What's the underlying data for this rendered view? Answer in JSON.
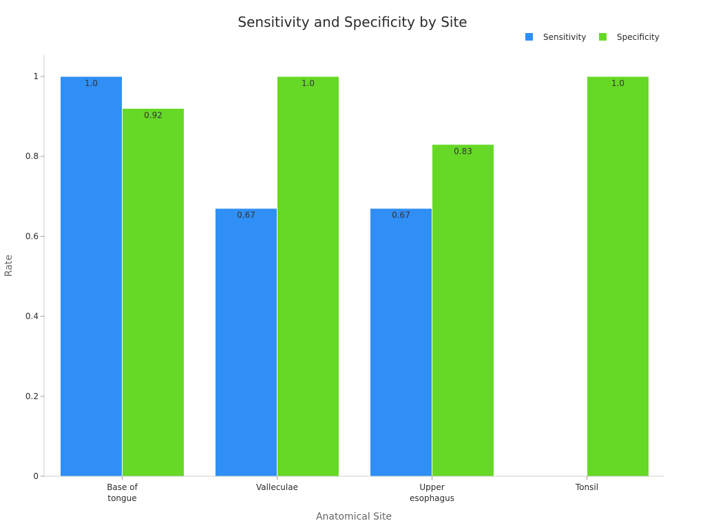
{
  "chart_data": {
    "type": "bar",
    "title": "Sensitivity and Specificity by Site",
    "xlabel": "Anatomical Site",
    "ylabel": "Rate",
    "ylim": [
      0,
      1.05
    ],
    "yticks": [
      0,
      0.2,
      0.4,
      0.6,
      0.8,
      1
    ],
    "ytick_labels": [
      "0",
      "0.2",
      "0.4",
      "0.6",
      "0.8",
      "1"
    ],
    "legend_position": "top-right",
    "grid": false,
    "categories": [
      [
        "Base of",
        "tongue"
      ],
      [
        "Valleculae"
      ],
      [
        "Upper",
        "esophagus"
      ],
      [
        "Tonsil"
      ]
    ],
    "series": [
      {
        "name": "Sensitivity",
        "color": "#2f8ff5",
        "values": [
          1.0,
          0.67,
          0.67,
          null
        ],
        "labels": [
          "1.0",
          "0.67",
          "0.67",
          ""
        ]
      },
      {
        "name": "Specificity",
        "color": "#66d926",
        "values": [
          0.92,
          1.0,
          0.83,
          1.0
        ],
        "labels": [
          "0.92",
          "1.0",
          "0.83",
          "1.0"
        ]
      }
    ]
  }
}
